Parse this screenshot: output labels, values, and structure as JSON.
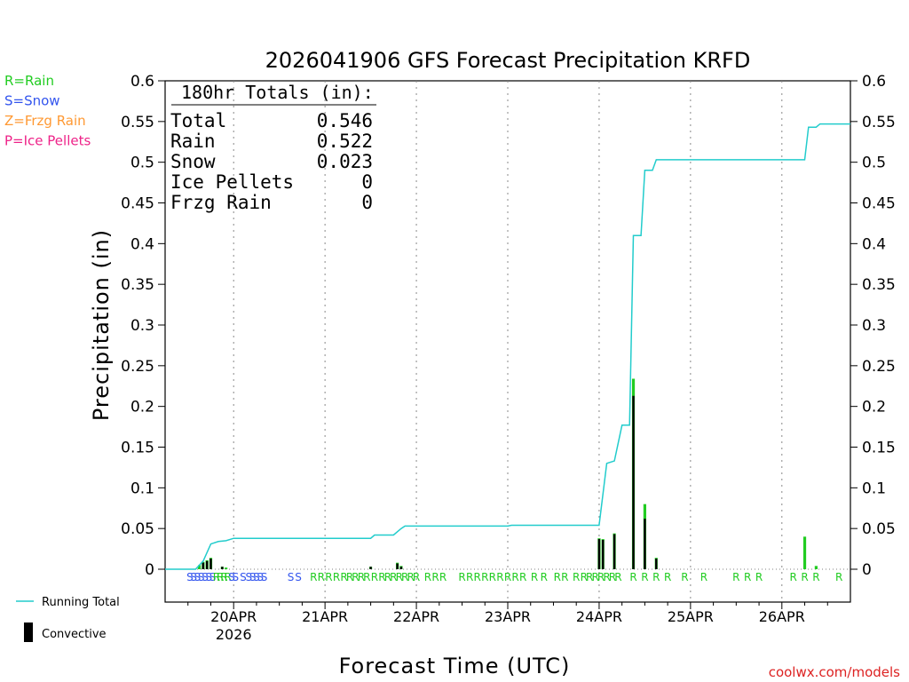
{
  "chart_data": {
    "type": "bar",
    "title": "2026041906 GFS Forecast Precipitation KRFD",
    "xlabel": "Forecast Time (UTC)",
    "ylabel": "Precipitation (in)",
    "ylim": [
      0,
      0.6
    ],
    "y_ticks": [
      0,
      0.05,
      0.1,
      0.15,
      0.2,
      0.25,
      0.3,
      0.35,
      0.4,
      0.45,
      0.5,
      0.55,
      0.6
    ],
    "y_tick_labels": [
      "0",
      "0.05",
      "0.1",
      "0.15",
      "0.2",
      "0.25",
      "0.3",
      "0.35",
      "0.4",
      "0.45",
      "0.5",
      "0.55",
      "0.6"
    ],
    "x_domain_hours": [
      0,
      180
    ],
    "x_ticks": [
      {
        "hour": 18,
        "label": "20APR",
        "sublabel": "2026"
      },
      {
        "hour": 42,
        "label": "21APR"
      },
      {
        "hour": 66,
        "label": "22APR"
      },
      {
        "hour": 90,
        "label": "23APR"
      },
      {
        "hour": 114,
        "label": "24APR"
      },
      {
        "hour": 138,
        "label": "25APR"
      },
      {
        "hour": 162,
        "label": "26APR"
      }
    ],
    "legend_types": [
      {
        "label": "R=Rain",
        "color": "#22cc22"
      },
      {
        "label": "S=Snow",
        "color": "#3355ee"
      },
      {
        "label": "Z=Frzg Rain",
        "color": "#ff9933"
      },
      {
        "label": "P=Ice Pellets",
        "color": "#ee2288"
      }
    ],
    "legend_series": [
      {
        "label": "Running Total",
        "color": "#22cccc",
        "kind": "line"
      },
      {
        "label": "Convective",
        "color": "#000000",
        "kind": "bar"
      }
    ],
    "totals": {
      "heading": "180hr Totals (in):",
      "rows": [
        {
          "label": "Total",
          "value": "0.546"
        },
        {
          "label": "Rain",
          "value": "0.522"
        },
        {
          "label": "Snow",
          "value": "0.023"
        },
        {
          "label": "Ice Pellets",
          "value": "0"
        },
        {
          "label": "Frzg Rain",
          "value": "0"
        }
      ]
    },
    "series": [
      {
        "name": "Total precipitation (3-hourly)",
        "color": "#22cc22",
        "points": [
          {
            "hour": 9,
            "value": 0.005
          },
          {
            "hour": 10,
            "value": 0.009
          },
          {
            "hour": 11,
            "value": 0.011
          },
          {
            "hour": 12,
            "value": 0.014
          },
          {
            "hour": 15,
            "value": 0.003
          },
          {
            "hour": 16,
            "value": 0.002
          },
          {
            "hour": 54,
            "value": 0.003
          },
          {
            "hour": 61,
            "value": 0.008
          },
          {
            "hour": 62,
            "value": 0.004
          },
          {
            "hour": 114,
            "value": 0.038
          },
          {
            "hour": 115,
            "value": 0.037
          },
          {
            "hour": 118,
            "value": 0.044
          },
          {
            "hour": 123,
            "value": 0.234
          },
          {
            "hour": 126,
            "value": 0.08
          },
          {
            "hour": 129,
            "value": 0.014
          },
          {
            "hour": 168,
            "value": 0.04
          },
          {
            "hour": 171,
            "value": 0.004
          }
        ]
      },
      {
        "name": "Convective",
        "color": "#000000",
        "points": [
          {
            "hour": 10,
            "value": 0.008
          },
          {
            "hour": 11,
            "value": 0.01
          },
          {
            "hour": 12,
            "value": 0.013
          },
          {
            "hour": 15,
            "value": 0.003
          },
          {
            "hour": 54,
            "value": 0.003
          },
          {
            "hour": 61,
            "value": 0.007
          },
          {
            "hour": 62,
            "value": 0.003
          },
          {
            "hour": 114,
            "value": 0.037
          },
          {
            "hour": 115,
            "value": 0.036
          },
          {
            "hour": 118,
            "value": 0.043
          },
          {
            "hour": 123,
            "value": 0.213
          },
          {
            "hour": 126,
            "value": 0.062
          },
          {
            "hour": 129,
            "value": 0.013
          }
        ]
      },
      {
        "name": "Running Total",
        "color": "#22cccc",
        "points": [
          {
            "hour": 0,
            "value": 0
          },
          {
            "hour": 8,
            "value": 0
          },
          {
            "hour": 10,
            "value": 0.01
          },
          {
            "hour": 12,
            "value": 0.031
          },
          {
            "hour": 14,
            "value": 0.034
          },
          {
            "hour": 16,
            "value": 0.035
          },
          {
            "hour": 18,
            "value": 0.038
          },
          {
            "hour": 54,
            "value": 0.038
          },
          {
            "hour": 55,
            "value": 0.042
          },
          {
            "hour": 60,
            "value": 0.042
          },
          {
            "hour": 62,
            "value": 0.05
          },
          {
            "hour": 63,
            "value": 0.053
          },
          {
            "hour": 90,
            "value": 0.053
          },
          {
            "hour": 91,
            "value": 0.054
          },
          {
            "hour": 114,
            "value": 0.054
          },
          {
            "hour": 116,
            "value": 0.13
          },
          {
            "hour": 118,
            "value": 0.133
          },
          {
            "hour": 120,
            "value": 0.177
          },
          {
            "hour": 122,
            "value": 0.177
          },
          {
            "hour": 123,
            "value": 0.41
          },
          {
            "hour": 125,
            "value": 0.41
          },
          {
            "hour": 126,
            "value": 0.49
          },
          {
            "hour": 128,
            "value": 0.49
          },
          {
            "hour": 129,
            "value": 0.503
          },
          {
            "hour": 168,
            "value": 0.503
          },
          {
            "hour": 169,
            "value": 0.543
          },
          {
            "hour": 171,
            "value": 0.543
          },
          {
            "hour": 172,
            "value": 0.547
          },
          {
            "hour": 180,
            "value": 0.547
          }
        ]
      }
    ],
    "ptype_labels": [
      {
        "hour": 6.5,
        "text": "S",
        "color": "#3355ee"
      },
      {
        "hour": 7.5,
        "text": "S",
        "color": "#3355ee"
      },
      {
        "hour": 8.5,
        "text": "S",
        "color": "#3355ee"
      },
      {
        "hour": 9.5,
        "text": "S",
        "color": "#3355ee"
      },
      {
        "hour": 10.5,
        "text": "S",
        "color": "#3355ee"
      },
      {
        "hour": 11.5,
        "text": "S",
        "color": "#3355ee"
      },
      {
        "hour": 12.5,
        "text": "S",
        "color": "#3355ee"
      },
      {
        "hour": 13.5,
        "text": "R",
        "color": "#22cc22"
      },
      {
        "hour": 14.5,
        "text": "R",
        "color": "#22cc22"
      },
      {
        "hour": 15.5,
        "text": "R",
        "color": "#22cc22"
      },
      {
        "hour": 16.5,
        "text": "R",
        "color": "#22cc22"
      },
      {
        "hour": 17.5,
        "text": "S",
        "color": "#3355ee"
      },
      {
        "hour": 18.5,
        "text": "S",
        "color": "#3355ee"
      },
      {
        "hour": 20.5,
        "text": "S",
        "color": "#3355ee"
      },
      {
        "hour": 22,
        "text": "S",
        "color": "#3355ee"
      },
      {
        "hour": 23,
        "text": "S",
        "color": "#3355ee"
      },
      {
        "hour": 24,
        "text": "S",
        "color": "#3355ee"
      },
      {
        "hour": 25,
        "text": "S",
        "color": "#3355ee"
      },
      {
        "hour": 26,
        "text": "S",
        "color": "#3355ee"
      },
      {
        "hour": 33,
        "text": "S",
        "color": "#3355ee"
      },
      {
        "hour": 35,
        "text": "S",
        "color": "#3355ee"
      },
      {
        "hour": 39,
        "text": "R",
        "color": "#22cc22"
      },
      {
        "hour": 41,
        "text": "R",
        "color": "#22cc22"
      },
      {
        "hour": 43,
        "text": "R",
        "color": "#22cc22"
      },
      {
        "hour": 45,
        "text": "R",
        "color": "#22cc22"
      },
      {
        "hour": 47,
        "text": "R",
        "color": "#22cc22"
      },
      {
        "hour": 48.5,
        "text": "R",
        "color": "#22cc22"
      },
      {
        "hour": 50,
        "text": "R",
        "color": "#22cc22"
      },
      {
        "hour": 51.5,
        "text": "R",
        "color": "#22cc22"
      },
      {
        "hour": 53,
        "text": "R",
        "color": "#22cc22"
      },
      {
        "hour": 55,
        "text": "R",
        "color": "#22cc22"
      },
      {
        "hour": 57,
        "text": "R",
        "color": "#22cc22"
      },
      {
        "hour": 58.5,
        "text": "R",
        "color": "#22cc22"
      },
      {
        "hour": 60,
        "text": "R",
        "color": "#22cc22"
      },
      {
        "hour": 61.5,
        "text": "R",
        "color": "#22cc22"
      },
      {
        "hour": 63,
        "text": "R",
        "color": "#22cc22"
      },
      {
        "hour": 64.5,
        "text": "R",
        "color": "#22cc22"
      },
      {
        "hour": 66,
        "text": "R",
        "color": "#22cc22"
      },
      {
        "hour": 69,
        "text": "R",
        "color": "#22cc22"
      },
      {
        "hour": 71,
        "text": "R",
        "color": "#22cc22"
      },
      {
        "hour": 73,
        "text": "R",
        "color": "#22cc22"
      },
      {
        "hour": 78,
        "text": "R",
        "color": "#22cc22"
      },
      {
        "hour": 80,
        "text": "R",
        "color": "#22cc22"
      },
      {
        "hour": 82,
        "text": "R",
        "color": "#22cc22"
      },
      {
        "hour": 84,
        "text": "R",
        "color": "#22cc22"
      },
      {
        "hour": 86,
        "text": "R",
        "color": "#22cc22"
      },
      {
        "hour": 88,
        "text": "R",
        "color": "#22cc22"
      },
      {
        "hour": 90,
        "text": "R",
        "color": "#22cc22"
      },
      {
        "hour": 92,
        "text": "R",
        "color": "#22cc22"
      },
      {
        "hour": 94,
        "text": "R",
        "color": "#22cc22"
      },
      {
        "hour": 97,
        "text": "R",
        "color": "#22cc22"
      },
      {
        "hour": 99.5,
        "text": "R",
        "color": "#22cc22"
      },
      {
        "hour": 103,
        "text": "R",
        "color": "#22cc22"
      },
      {
        "hour": 105,
        "text": "R",
        "color": "#22cc22"
      },
      {
        "hour": 108,
        "text": "R",
        "color": "#22cc22"
      },
      {
        "hour": 110,
        "text": "R",
        "color": "#22cc22"
      },
      {
        "hour": 111.5,
        "text": "R",
        "color": "#22cc22"
      },
      {
        "hour": 113,
        "text": "R",
        "color": "#22cc22"
      },
      {
        "hour": 114.5,
        "text": "R",
        "color": "#22cc22"
      },
      {
        "hour": 116,
        "text": "R",
        "color": "#22cc22"
      },
      {
        "hour": 117.5,
        "text": "R",
        "color": "#22cc22"
      },
      {
        "hour": 119,
        "text": "R",
        "color": "#22cc22"
      },
      {
        "hour": 123,
        "text": "R",
        "color": "#22cc22"
      },
      {
        "hour": 126,
        "text": "R",
        "color": "#22cc22"
      },
      {
        "hour": 129,
        "text": "R",
        "color": "#22cc22"
      },
      {
        "hour": 132,
        "text": "R",
        "color": "#22cc22"
      },
      {
        "hour": 136.5,
        "text": "R",
        "color": "#22cc22"
      },
      {
        "hour": 141.5,
        "text": "R",
        "color": "#22cc22"
      },
      {
        "hour": 150,
        "text": "R",
        "color": "#22cc22"
      },
      {
        "hour": 153,
        "text": "R",
        "color": "#22cc22"
      },
      {
        "hour": 156,
        "text": "R",
        "color": "#22cc22"
      },
      {
        "hour": 165,
        "text": "R",
        "color": "#22cc22"
      },
      {
        "hour": 168,
        "text": "R",
        "color": "#22cc22"
      },
      {
        "hour": 171,
        "text": "R",
        "color": "#22cc22"
      },
      {
        "hour": 177,
        "text": "R",
        "color": "#22cc22"
      }
    ]
  },
  "credit": "coolwx.com/models"
}
